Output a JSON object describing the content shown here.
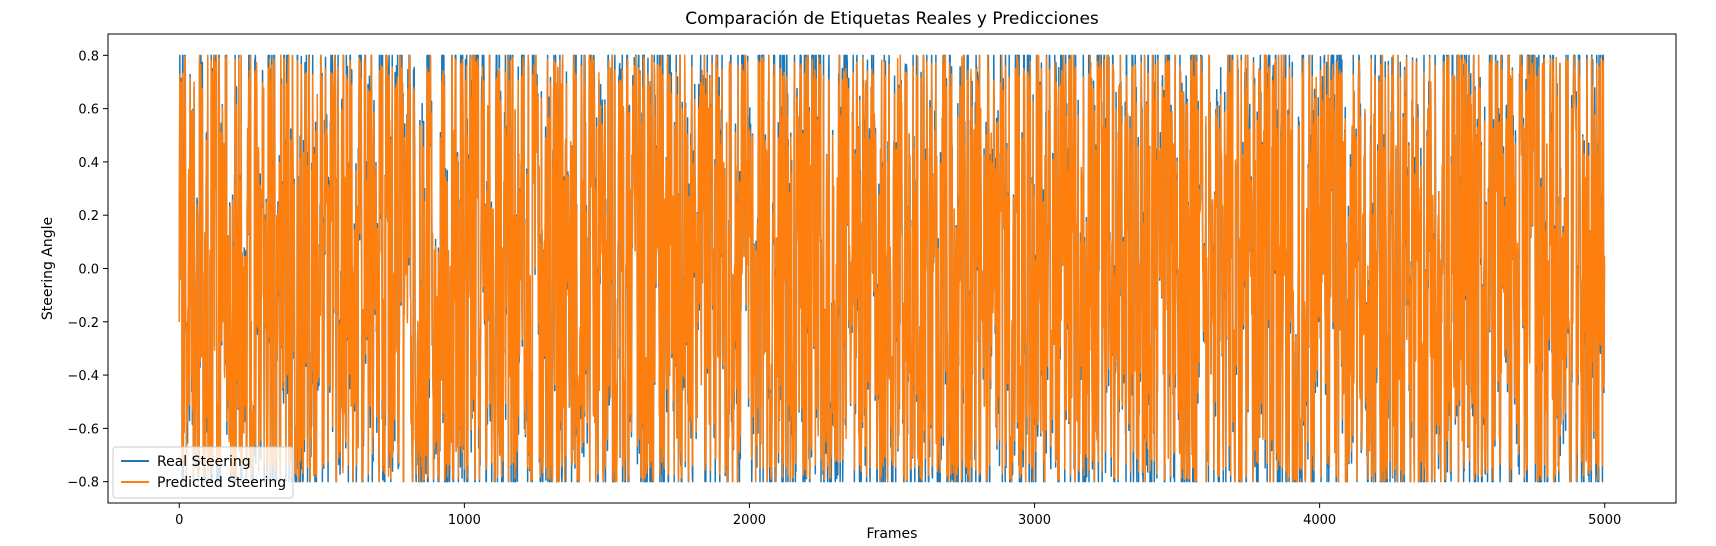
{
  "chart_data": {
    "type": "line",
    "title": "Comparación de Etiquetas Reales y Predicciones",
    "xlabel": "Frames",
    "ylabel": "Steering Angle",
    "xlim": [
      -250,
      5250
    ],
    "ylim": [
      -0.88,
      0.88
    ],
    "xticks": [
      0,
      1000,
      2000,
      3000,
      4000,
      5000
    ],
    "xtick_labels": [
      "0",
      "1000",
      "2000",
      "3000",
      "4000",
      "5000"
    ],
    "yticks": [
      -0.8,
      -0.6,
      -0.4,
      -0.2,
      0.0,
      0.2,
      0.4,
      0.6,
      0.8
    ],
    "ytick_labels": [
      "−0.8",
      "−0.6",
      "−0.4",
      "−0.2",
      "0.0",
      "0.2",
      "0.4",
      "0.6",
      "0.8"
    ],
    "grid": false,
    "legend_position": "lower-left",
    "n_frames": 5000,
    "value_range": [
      -0.8,
      0.8
    ],
    "series": [
      {
        "name": "Real Steering",
        "color": "#1f77b4"
      },
      {
        "name": "Predicted Steering",
        "color": "#ff7f0e"
      }
    ]
  }
}
